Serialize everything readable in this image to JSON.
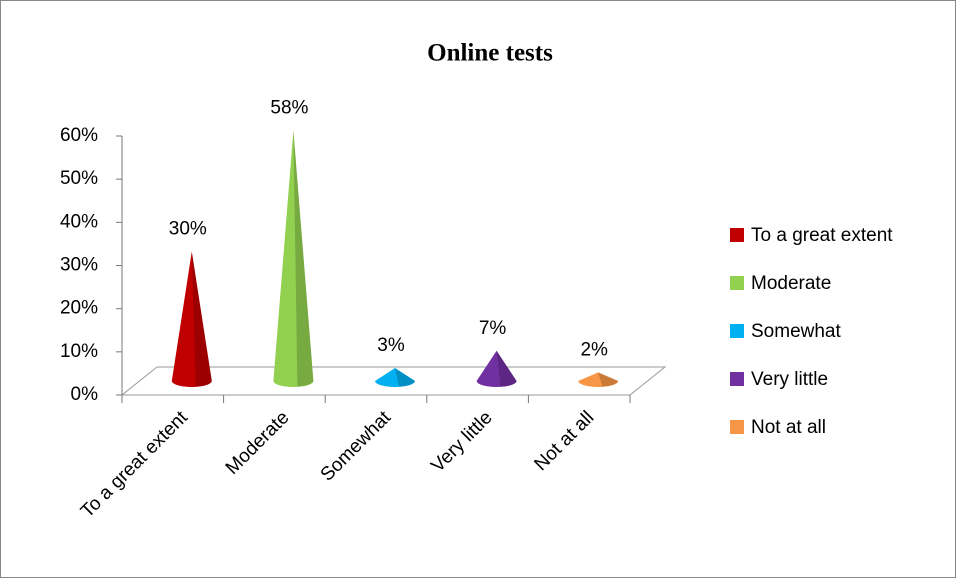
{
  "chart_data": {
    "type": "cone",
    "title": "Online tests",
    "categories": [
      "To a great extent",
      "Moderate",
      "Somewhat",
      "Very little",
      "Not at all"
    ],
    "values": [
      30,
      58,
      3,
      7,
      2
    ],
    "value_labels": [
      "30%",
      "58%",
      "3%",
      "7%",
      "2%"
    ],
    "colors": [
      "#c00000",
      "#92d050",
      "#00b0f0",
      "#7030a0",
      "#f79646"
    ],
    "ylim": [
      0,
      60
    ],
    "yticks": [
      {
        "value": 0,
        "label": "0%"
      },
      {
        "value": 10,
        "label": "10%"
      },
      {
        "value": 20,
        "label": "20%"
      },
      {
        "value": 30,
        "label": "30%"
      },
      {
        "value": 40,
        "label": "40%"
      },
      {
        "value": 50,
        "label": "50%"
      },
      {
        "value": 60,
        "label": "60%"
      }
    ],
    "legend": "right"
  }
}
